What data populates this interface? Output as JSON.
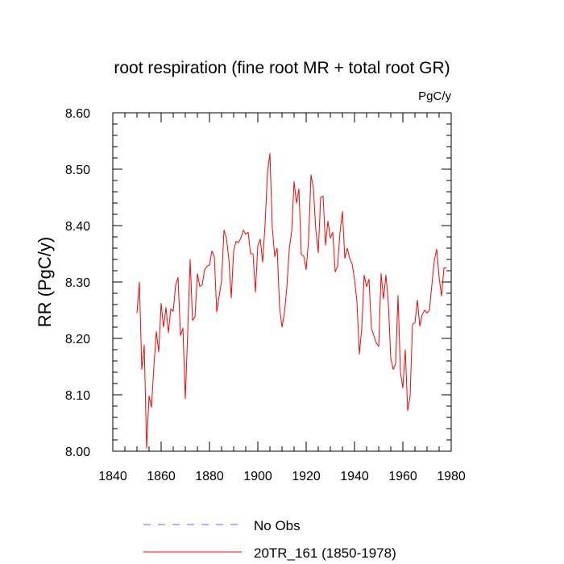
{
  "chart_data": {
    "type": "line",
    "title": "root respiration (fine root MR + total root GR)",
    "units_label": "PgC/y",
    "ylabel": "RR  (PgC/y)",
    "xlabel": "",
    "xlim": [
      1840,
      1980
    ],
    "ylim": [
      8.0,
      8.6
    ],
    "x_ticks": [
      1840,
      1860,
      1880,
      1900,
      1920,
      1940,
      1960,
      1980
    ],
    "x_tick_labels": [
      "1840",
      "1860",
      "1880",
      "1900",
      "1920",
      "1940",
      "1960",
      "1980"
    ],
    "y_ticks": [
      8.0,
      8.1,
      8.2,
      8.3,
      8.4,
      8.5,
      8.6
    ],
    "y_tick_labels": [
      "8.00",
      "8.10",
      "8.20",
      "8.30",
      "8.40",
      "8.50",
      "8.60"
    ],
    "legend": [
      {
        "label": "No Obs",
        "color": "#6666ff",
        "style": "dashed"
      },
      {
        "label": "20TR_161 (1850-1978)",
        "color": "#ff0000",
        "style": "solid"
      }
    ],
    "series": [
      {
        "name": "20TR_161 (1850-1978)",
        "color": "#ff0000",
        "x": [
          1850,
          1851,
          1852,
          1853,
          1854,
          1855,
          1856,
          1857,
          1858,
          1859,
          1860,
          1861,
          1862,
          1863,
          1864,
          1865,
          1866,
          1867,
          1868,
          1869,
          1870,
          1871,
          1872,
          1873,
          1874,
          1875,
          1876,
          1877,
          1878,
          1879,
          1880,
          1881,
          1882,
          1883,
          1884,
          1885,
          1886,
          1887,
          1888,
          1889,
          1890,
          1891,
          1892,
          1893,
          1894,
          1895,
          1896,
          1897,
          1898,
          1899,
          1900,
          1901,
          1902,
          1903,
          1904,
          1905,
          1906,
          1907,
          1908,
          1909,
          1910,
          1911,
          1912,
          1913,
          1914,
          1915,
          1916,
          1917,
          1918,
          1919,
          1920,
          1921,
          1922,
          1923,
          1924,
          1925,
          1926,
          1927,
          1928,
          1929,
          1930,
          1931,
          1932,
          1933,
          1934,
          1935,
          1936,
          1937,
          1938,
          1939,
          1940,
          1941,
          1942,
          1943,
          1944,
          1945,
          1946,
          1947,
          1948,
          1949,
          1950,
          1951,
          1952,
          1953,
          1954,
          1955,
          1956,
          1957,
          1958,
          1959,
          1960,
          1961,
          1962,
          1963,
          1964,
          1965,
          1966,
          1967,
          1968,
          1969,
          1970,
          1971,
          1972,
          1973,
          1974,
          1975,
          1976,
          1977,
          1978
        ],
        "values": [
          8.245,
          8.3,
          8.145,
          8.188,
          8.005,
          8.098,
          8.078,
          8.15,
          8.212,
          8.176,
          8.262,
          8.22,
          8.255,
          8.21,
          8.252,
          8.248,
          8.295,
          8.308,
          8.205,
          8.218,
          8.093,
          8.212,
          8.34,
          8.232,
          8.238,
          8.315,
          8.292,
          8.295,
          8.322,
          8.328,
          8.33,
          8.355,
          8.345,
          8.247,
          8.275,
          8.302,
          8.392,
          8.378,
          8.342,
          8.272,
          8.355,
          8.372,
          8.37,
          8.378,
          8.392,
          8.385,
          8.388,
          8.35,
          8.35,
          8.282,
          8.365,
          8.376,
          8.335,
          8.402,
          8.495,
          8.528,
          8.395,
          8.345,
          8.36,
          8.255,
          8.22,
          8.245,
          8.29,
          8.358,
          8.39,
          8.478,
          8.44,
          8.465,
          8.348,
          8.346,
          8.322,
          8.375,
          8.49,
          8.465,
          8.392,
          8.352,
          8.45,
          8.452,
          8.365,
          8.408,
          8.378,
          8.388,
          8.318,
          8.328,
          8.388,
          8.425,
          8.342,
          8.36,
          8.342,
          8.332,
          8.305,
          8.265,
          8.172,
          8.218,
          8.312,
          8.292,
          8.305,
          8.218,
          8.205,
          8.192,
          8.186,
          8.315,
          8.27,
          8.312,
          8.262,
          8.165,
          8.145,
          8.155,
          8.276,
          8.14,
          8.112,
          8.18,
          8.072,
          8.098,
          8.225,
          8.228,
          8.268,
          8.222,
          8.242,
          8.25,
          8.245,
          8.25,
          8.295,
          8.338,
          8.358,
          8.308,
          8.275,
          8.325,
          8.325
        ]
      }
    ]
  }
}
